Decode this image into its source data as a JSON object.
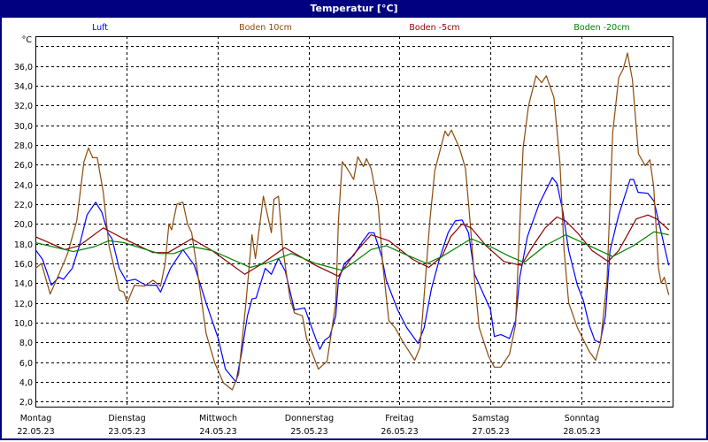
{
  "window": {
    "title": "Temperatur [°C]"
  },
  "chart_data": {
    "type": "line",
    "title": "Temperatur [°C]",
    "ylabel": "°C",
    "xlabel": "",
    "x_unit": "hours since 22.05.23 00:00",
    "xlim": [
      0,
      168
    ],
    "ylim": [
      1.5,
      39
    ],
    "grid": true,
    "legend_position": "top",
    "y_ticks": [
      2,
      4,
      6,
      8,
      10,
      12,
      14,
      16,
      18,
      20,
      22,
      24,
      26,
      28,
      30,
      32,
      34,
      36,
      38
    ],
    "y_tick_labels": [
      "2,0",
      "4,0",
      "6,0",
      "8,0",
      "10,0",
      "12,0",
      "14,0",
      "16,0",
      "18,0",
      "20,0",
      "22,0",
      "24,0",
      "26,0",
      "28,0",
      "30,0",
      "32,0",
      "34,0",
      "36,0",
      ""
    ],
    "x_ticks": [
      0,
      24,
      48,
      72,
      96,
      120,
      144
    ],
    "x_tick_days": [
      "Montag",
      "Dienstag",
      "Mittwoch",
      "Donnerstag",
      "Freitag",
      "Samstag",
      "Sonntag"
    ],
    "x_tick_dates": [
      "22.05.23",
      "23.05.23",
      "24.05.23",
      "25.05.23",
      "26.05.23",
      "27.05.23",
      "28.05.23"
    ],
    "series": [
      {
        "name": "Luft",
        "color": "#0000ff",
        "points": [
          [
            0,
            17.4
          ],
          [
            1.9,
            16.4
          ],
          [
            4.2,
            13.8
          ],
          [
            6.2,
            14.6
          ],
          [
            7.4,
            14.4
          ],
          [
            9.7,
            15.5
          ],
          [
            11.6,
            17.8
          ],
          [
            13.6,
            20.9
          ],
          [
            15.9,
            22.2
          ],
          [
            17.5,
            21.2
          ],
          [
            19.1,
            19.1
          ],
          [
            20.2,
            18.5
          ],
          [
            22.1,
            15.5
          ],
          [
            24,
            14.2
          ],
          [
            26.3,
            14.4
          ],
          [
            29.1,
            13.8
          ],
          [
            31.9,
            13.8
          ],
          [
            33,
            13.1
          ],
          [
            35.6,
            15.5
          ],
          [
            38.9,
            17.4
          ],
          [
            41.9,
            15.8
          ],
          [
            45,
            12
          ],
          [
            48.2,
            8.4
          ],
          [
            50.1,
            5.3
          ],
          [
            52.9,
            4.0
          ],
          [
            54.3,
            6.8
          ],
          [
            55.9,
            10.7
          ],
          [
            57.1,
            12.4
          ],
          [
            58.2,
            12.5
          ],
          [
            60.6,
            15.5
          ],
          [
            62.2,
            14.9
          ],
          [
            64.1,
            16.5
          ],
          [
            65.9,
            15.2
          ],
          [
            68.3,
            11.3
          ],
          [
            71,
            11.5
          ],
          [
            73.9,
            8.4
          ],
          [
            75,
            7.3
          ],
          [
            76.2,
            8.2
          ],
          [
            77.6,
            8.6
          ],
          [
            79.2,
            10.7
          ],
          [
            79.9,
            14.3
          ],
          [
            81.5,
            16
          ],
          [
            83.9,
            16.8
          ],
          [
            86.2,
            18.2
          ],
          [
            88,
            19.1
          ],
          [
            89.3,
            19.1
          ],
          [
            91.3,
            16.7
          ],
          [
            92.5,
            14.3
          ],
          [
            95.5,
            11.3
          ],
          [
            97.9,
            9.5
          ],
          [
            100.9,
            7.9
          ],
          [
            102.5,
            9.5
          ],
          [
            104.4,
            13.4
          ],
          [
            106.5,
            16.4
          ],
          [
            108.8,
            19.1
          ],
          [
            110.7,
            20.3
          ],
          [
            112.5,
            20.4
          ],
          [
            114.2,
            19.1
          ],
          [
            115.8,
            14.9
          ],
          [
            117.2,
            13.7
          ],
          [
            120,
            11.3
          ],
          [
            121,
            8.6
          ],
          [
            122.7,
            8.8
          ],
          [
            125,
            8.4
          ],
          [
            126.6,
            10.2
          ],
          [
            127.7,
            14.6
          ],
          [
            129.7,
            18.7
          ],
          [
            132.8,
            22
          ],
          [
            136.3,
            24.7
          ],
          [
            137.5,
            24.1
          ],
          [
            139,
            21.4
          ],
          [
            140.6,
            17.3
          ],
          [
            142.9,
            13.8
          ],
          [
            144.5,
            12.2
          ],
          [
            146,
            9.8
          ],
          [
            147.5,
            8.2
          ],
          [
            148.9,
            8.0
          ],
          [
            150.3,
            10.7
          ],
          [
            151.5,
            17.3
          ],
          [
            153.8,
            20.9
          ],
          [
            156.8,
            24.5
          ],
          [
            157.7,
            24.5
          ],
          [
            158.9,
            23.2
          ],
          [
            161.5,
            23.1
          ],
          [
            163.1,
            22.3
          ],
          [
            164.7,
            19.6
          ],
          [
            167,
            15.8
          ]
        ]
      },
      {
        "name": "Boden 10cm",
        "color": "#8b4a0c",
        "points": [
          [
            0,
            15.5
          ],
          [
            1.6,
            16
          ],
          [
            3.9,
            12.9
          ],
          [
            6.2,
            14.9
          ],
          [
            8.5,
            17
          ],
          [
            10.9,
            20.3
          ],
          [
            12.8,
            26.3
          ],
          [
            14,
            27.7
          ],
          [
            15.1,
            26.7
          ],
          [
            16.3,
            26.7
          ],
          [
            17.9,
            23.2
          ],
          [
            19.4,
            17.8
          ],
          [
            21,
            15.2
          ],
          [
            22.1,
            13.3
          ],
          [
            23.3,
            13.1
          ],
          [
            24.2,
            12
          ],
          [
            26.1,
            13.8
          ],
          [
            28.7,
            13.7
          ],
          [
            31,
            14.3
          ],
          [
            33,
            13.7
          ],
          [
            34.2,
            16
          ],
          [
            35.2,
            20
          ],
          [
            35.9,
            19.4
          ],
          [
            37.3,
            22
          ],
          [
            38.9,
            22.2
          ],
          [
            40.1,
            20
          ],
          [
            41.2,
            19.1
          ],
          [
            42.6,
            15.5
          ],
          [
            45,
            8.9
          ],
          [
            47.3,
            5.9
          ],
          [
            49.6,
            3.9
          ],
          [
            51.9,
            3.2
          ],
          [
            53.6,
            4.8
          ],
          [
            55.5,
            12
          ],
          [
            57.1,
            18.9
          ],
          [
            58,
            16.5
          ],
          [
            60.1,
            22.8
          ],
          [
            62.2,
            19.1
          ],
          [
            62.9,
            22.5
          ],
          [
            64.1,
            22.8
          ],
          [
            65.2,
            17.6
          ],
          [
            67.1,
            12.5
          ],
          [
            68.3,
            11
          ],
          [
            70.4,
            10.7
          ],
          [
            71.5,
            8.4
          ],
          [
            74.6,
            5.3
          ],
          [
            76.9,
            6.1
          ],
          [
            79.2,
            12
          ],
          [
            79.9,
            20.3
          ],
          [
            80.9,
            26.3
          ],
          [
            82.2,
            25.6
          ],
          [
            83.9,
            24.5
          ],
          [
            85,
            26.8
          ],
          [
            86.5,
            25.8
          ],
          [
            87.3,
            26.6
          ],
          [
            88.5,
            25.6
          ],
          [
            90.4,
            21.8
          ],
          [
            91.6,
            15.8
          ],
          [
            93.2,
            10.2
          ],
          [
            94.8,
            9.5
          ],
          [
            97,
            8
          ],
          [
            100,
            6.2
          ],
          [
            101.4,
            7.5
          ],
          [
            102.5,
            12.8
          ],
          [
            104,
            20.3
          ],
          [
            105.3,
            25.4
          ],
          [
            108,
            29.4
          ],
          [
            108.8,
            28.9
          ],
          [
            109.7,
            29.5
          ],
          [
            111.8,
            27.7
          ],
          [
            113.4,
            25.6
          ],
          [
            114.6,
            20.3
          ],
          [
            115.8,
            14.3
          ],
          [
            117,
            9.5
          ],
          [
            119.5,
            6.6
          ],
          [
            121,
            5.5
          ],
          [
            122.7,
            5.5
          ],
          [
            125,
            6.8
          ],
          [
            126.6,
            9.8
          ],
          [
            127.4,
            17.3
          ],
          [
            128.6,
            27.7
          ],
          [
            130,
            31.9
          ],
          [
            132,
            35
          ],
          [
            133.5,
            34.3
          ],
          [
            134.7,
            35
          ],
          [
            136.7,
            32.8
          ],
          [
            138.3,
            26.2
          ],
          [
            139.4,
            17.3
          ],
          [
            140.6,
            12
          ],
          [
            142.9,
            9.5
          ],
          [
            146,
            7.1
          ],
          [
            147.7,
            6.2
          ],
          [
            149,
            8
          ],
          [
            150.7,
            14.3
          ],
          [
            152.2,
            29.2
          ],
          [
            153.8,
            34.8
          ],
          [
            155,
            35.7
          ],
          [
            156.1,
            37.3
          ],
          [
            157.4,
            34.6
          ],
          [
            159,
            27.1
          ],
          [
            160.8,
            25.9
          ],
          [
            162,
            26.5
          ],
          [
            163,
            23.8
          ],
          [
            164.3,
            15.5
          ],
          [
            165,
            14
          ],
          [
            165.8,
            14.6
          ],
          [
            167,
            12.8
          ]
        ]
      },
      {
        "name": "Boden -5cm",
        "color": "#8b0000",
        "points": [
          [
            0,
            18.7
          ],
          [
            7.8,
            17.4
          ],
          [
            11.6,
            17.8
          ],
          [
            17.9,
            19.6
          ],
          [
            23.3,
            18.5
          ],
          [
            31,
            17.1
          ],
          [
            35,
            17.1
          ],
          [
            41.2,
            18.5
          ],
          [
            46.6,
            17.3
          ],
          [
            55.2,
            14.9
          ],
          [
            59.9,
            16
          ],
          [
            65.7,
            17.6
          ],
          [
            73.9,
            15.8
          ],
          [
            79.9,
            14.7
          ],
          [
            83.9,
            16.9
          ],
          [
            88.5,
            18.9
          ],
          [
            93.2,
            18.3
          ],
          [
            99.5,
            16.4
          ],
          [
            103.7,
            15.6
          ],
          [
            107.2,
            16.7
          ],
          [
            109.5,
            18.7
          ],
          [
            112.5,
            20
          ],
          [
            114.9,
            19.6
          ],
          [
            118.8,
            17.8
          ],
          [
            123.5,
            16.2
          ],
          [
            128.1,
            15.8
          ],
          [
            131.2,
            17.8
          ],
          [
            134.4,
            19.6
          ],
          [
            137.5,
            20.7
          ],
          [
            139.8,
            20.3
          ],
          [
            142.9,
            19.1
          ],
          [
            146.8,
            17.3
          ],
          [
            151,
            16.2
          ],
          [
            153.8,
            17.3
          ],
          [
            158.4,
            20.5
          ],
          [
            161.5,
            20.9
          ],
          [
            163.8,
            20.5
          ],
          [
            167,
            19.4
          ]
        ]
      },
      {
        "name": "Boden -20cm",
        "color": "#008000",
        "points": [
          [
            0,
            18.1
          ],
          [
            10,
            17.2
          ],
          [
            15.6,
            17.7
          ],
          [
            19.4,
            18.3
          ],
          [
            23.3,
            18.1
          ],
          [
            32.6,
            17
          ],
          [
            36.5,
            17
          ],
          [
            41.2,
            17.7
          ],
          [
            46.6,
            17.3
          ],
          [
            56.6,
            15.6
          ],
          [
            60.6,
            16
          ],
          [
            67.5,
            17
          ],
          [
            73.9,
            16
          ],
          [
            80.9,
            15.3
          ],
          [
            83.9,
            16.1
          ],
          [
            88.5,
            17.4
          ],
          [
            92.5,
            17.8
          ],
          [
            97,
            17
          ],
          [
            103.2,
            16
          ],
          [
            107.2,
            16.7
          ],
          [
            114.9,
            18.5
          ],
          [
            120.5,
            17.6
          ],
          [
            125.1,
            16.7
          ],
          [
            128.9,
            16.1
          ],
          [
            134.4,
            17.8
          ],
          [
            139.8,
            18.9
          ],
          [
            146,
            17.8
          ],
          [
            152.2,
            16.7
          ],
          [
            157.7,
            17.8
          ],
          [
            163.1,
            19.2
          ],
          [
            167,
            18.9
          ]
        ]
      }
    ]
  }
}
